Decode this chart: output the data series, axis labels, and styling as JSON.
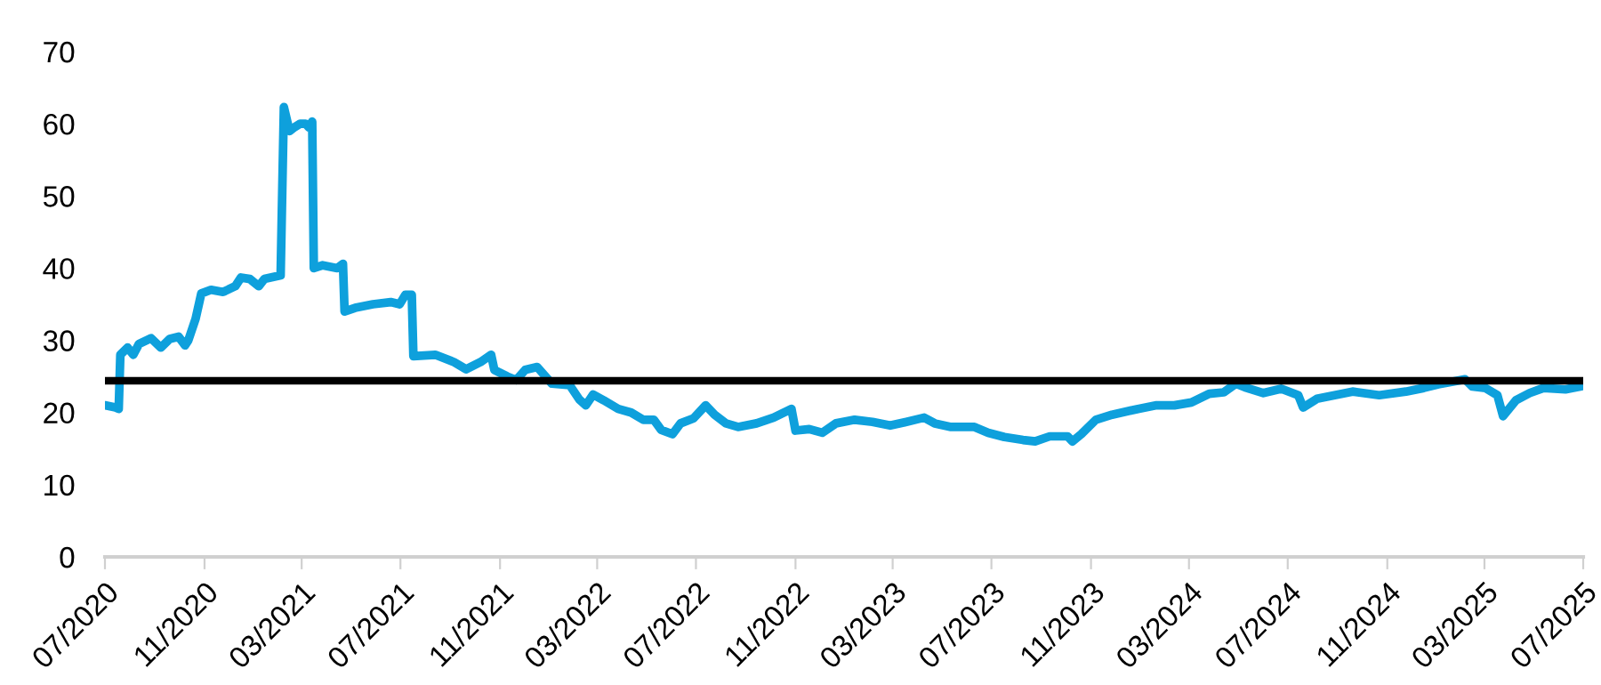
{
  "chart_data": {
    "type": "line",
    "x": [
      "2020-07-01",
      "2020-07-14",
      "2020-07-18",
      "2020-07-20",
      "2020-07-29",
      "2020-08-05",
      "2020-08-12",
      "2020-08-27",
      "2020-09-08",
      "2020-09-19",
      "2020-09-30",
      "2020-10-08",
      "2020-10-12",
      "2020-10-21",
      "2020-10-28",
      "2020-11-09",
      "2020-11-24",
      "2020-12-09",
      "2020-12-16",
      "2020-12-27",
      "2021-01-07",
      "2021-01-14",
      "2021-02-03",
      "2021-02-07",
      "2021-02-14",
      "2021-02-20",
      "2021-02-27",
      "2021-03-06",
      "2021-03-10",
      "2021-03-14",
      "2021-03-16",
      "2021-03-27",
      "2021-04-14",
      "2021-04-21",
      "2021-04-23",
      "2021-05-06",
      "2021-05-28",
      "2021-06-19",
      "2021-06-30",
      "2021-07-07",
      "2021-07-15",
      "2021-07-17",
      "2021-08-13",
      "2021-09-05",
      "2021-09-20",
      "2021-10-08",
      "2021-10-21",
      "2021-10-25",
      "2021-11-10",
      "2021-11-21",
      "2021-12-02",
      "2021-12-17",
      "2022-01-04",
      "2022-01-26",
      "2022-02-07",
      "2022-02-15",
      "2022-02-24",
      "2022-03-09",
      "2022-03-27",
      "2022-04-12",
      "2022-04-27",
      "2022-05-10",
      "2022-05-19",
      "2022-06-02",
      "2022-06-12",
      "2022-06-28",
      "2022-07-13",
      "2022-07-24",
      "2022-08-07",
      "2022-08-22",
      "2022-09-14",
      "2022-10-05",
      "2022-10-27",
      "2022-11-01",
      "2022-11-18",
      "2022-12-04",
      "2022-12-21",
      "2023-01-13",
      "2023-02-04",
      "2023-02-26",
      "2023-03-18",
      "2023-04-09",
      "2023-04-22",
      "2023-05-12",
      "2023-06-10",
      "2023-06-27",
      "2023-07-17",
      "2023-08-09",
      "2023-08-24",
      "2023-09-11",
      "2023-10-03",
      "2023-10-09",
      "2023-10-20",
      "2023-11-07",
      "2023-11-27",
      "2023-12-29",
      "2024-01-21",
      "2024-02-12",
      "2024-03-04",
      "2024-03-26",
      "2024-04-13",
      "2024-04-28",
      "2024-05-09",
      "2024-06-01",
      "2024-06-23",
      "2024-07-14",
      "2024-07-20",
      "2024-08-06",
      "2024-08-28",
      "2024-09-19",
      "2024-10-22",
      "2024-11-24",
      "2024-12-16",
      "2025-01-03",
      "2025-02-05",
      "2025-02-14",
      "2025-03-02",
      "2025-03-17",
      "2025-03-24",
      "2025-04-09",
      "2025-04-26",
      "2025-05-13",
      "2025-06-09",
      "2025-07-01"
    ],
    "series": [
      {
        "color": "#0ea0dc",
        "values": [
          21,
          20.7,
          20.5,
          28,
          29,
          28,
          29.5,
          30.3,
          29,
          30.2,
          30.5,
          29.3,
          30,
          33,
          36.5,
          37,
          36.7,
          37.5,
          38.7,
          38.5,
          37.5,
          38.5,
          39,
          62.3,
          59,
          59.5,
          60,
          60,
          59.5,
          60.3,
          40,
          40.4,
          40,
          40.6,
          34,
          34.5,
          35,
          35.3,
          35,
          36.3,
          36.3,
          27.8,
          28,
          27,
          26,
          27,
          28,
          25.9,
          25,
          24.5,
          25.9,
          26.3,
          24,
          23.8,
          21.8,
          21,
          22.5,
          21.7,
          20.5,
          20,
          19,
          19,
          17.6,
          17,
          18.5,
          19.2,
          21,
          19.7,
          18.5,
          18,
          18.5,
          19.3,
          20.5,
          17.5,
          17.7,
          17.2,
          18.5,
          19,
          18.7,
          18.2,
          18.7,
          19.3,
          18.5,
          18,
          18,
          17.2,
          16.6,
          16.2,
          16,
          16.7,
          16.7,
          16,
          17,
          19,
          19.7,
          20.5,
          21,
          21,
          21.4,
          22.6,
          22.8,
          24,
          23.5,
          22.7,
          23.3,
          22.4,
          20.7,
          21.9,
          22.4,
          22.9,
          22.4,
          22.9,
          23.4,
          23.9,
          24.6,
          23.6,
          23.4,
          22.4,
          19.5,
          21.7,
          22.7,
          23.4,
          23.2,
          23.7
        ]
      }
    ],
    "ref_lines": [
      {
        "axis": "y",
        "value": 24.4,
        "color": "#000000"
      }
    ],
    "xlim": [
      "2020-07-01",
      "2025-07-01"
    ],
    "xticks": [
      {
        "value": "2020-07-01",
        "label": "07/2020"
      },
      {
        "value": "2020-11-01",
        "label": "11/2020"
      },
      {
        "value": "2021-03-01",
        "label": "03/2021"
      },
      {
        "value": "2021-07-01",
        "label": "07/2021"
      },
      {
        "value": "2021-11-01",
        "label": "11/2021"
      },
      {
        "value": "2022-03-01",
        "label": "03/2022"
      },
      {
        "value": "2022-07-01",
        "label": "07/2022"
      },
      {
        "value": "2022-11-01",
        "label": "11/2022"
      },
      {
        "value": "2023-03-01",
        "label": "03/2023"
      },
      {
        "value": "2023-07-01",
        "label": "07/2023"
      },
      {
        "value": "2023-11-01",
        "label": "11/2023"
      },
      {
        "value": "2024-03-01",
        "label": "03/2024"
      },
      {
        "value": "2024-07-01",
        "label": "07/2024"
      },
      {
        "value": "2024-11-01",
        "label": "11/2024"
      },
      {
        "value": "2025-03-01",
        "label": "03/2025"
      },
      {
        "value": "2025-07-01",
        "label": "07/2025"
      }
    ],
    "ylim": [
      0,
      70
    ],
    "yticks": [
      0,
      10,
      20,
      30,
      40,
      50,
      60,
      70
    ],
    "grid": false,
    "legend": false
  }
}
